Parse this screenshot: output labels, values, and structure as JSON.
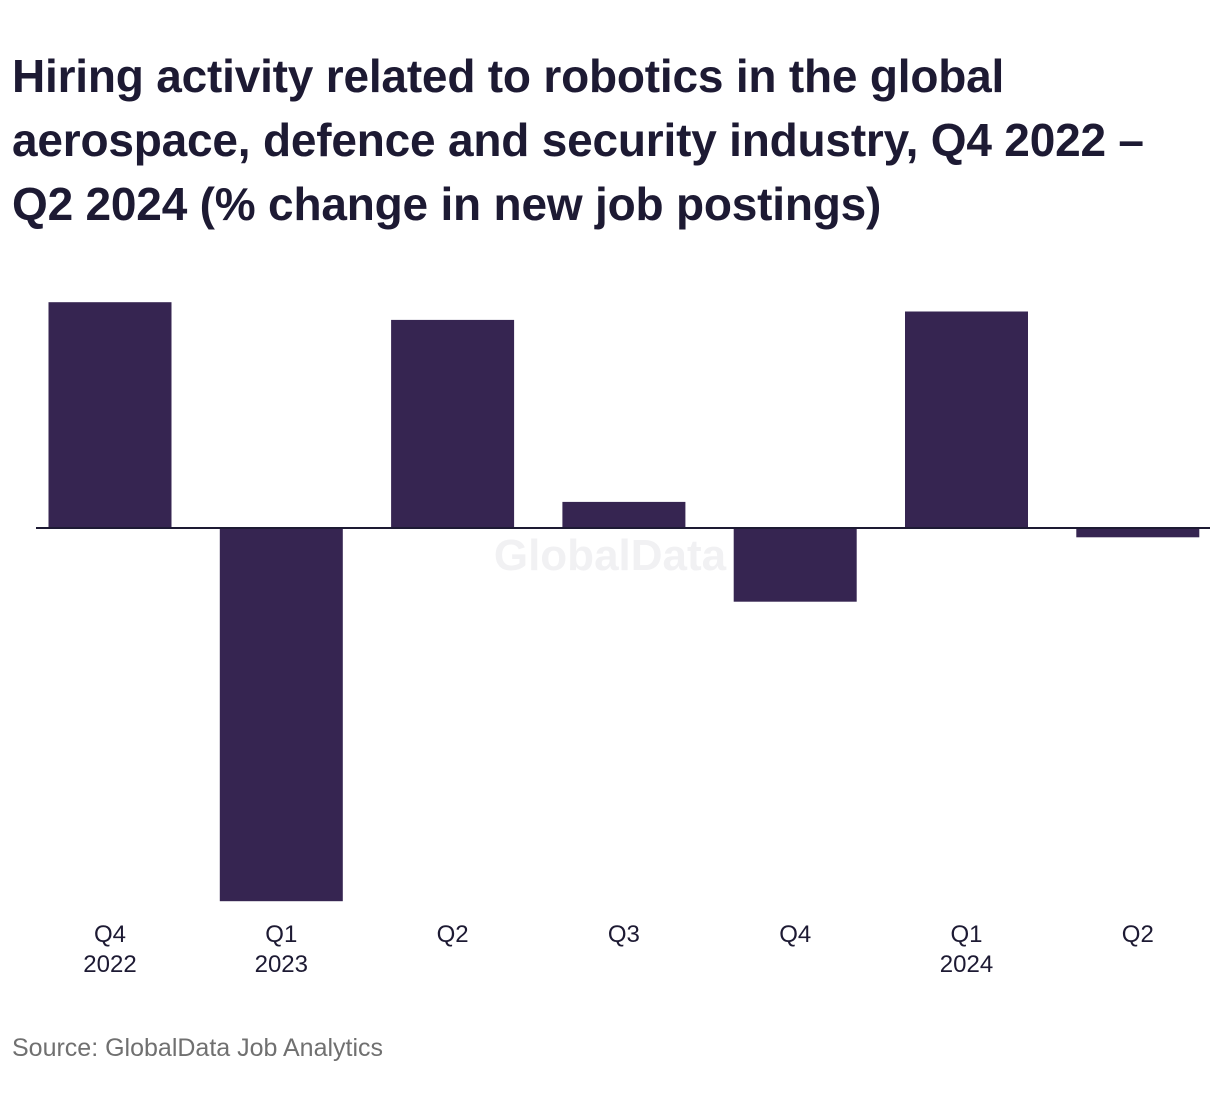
{
  "chart_data": {
    "type": "bar",
    "title": "Hiring activity related to robotics in the global aerospace, defence and security industry, Q4 2022 – Q2 2024 (% change in new job postings)",
    "categories": [
      "Q4 2022",
      "Q1 2023",
      "Q2 2023",
      "Q3 2023",
      "Q4 2023",
      "Q1 2024",
      "Q2 2024"
    ],
    "tick_labels": [
      [
        "Q4",
        "2022"
      ],
      [
        "Q1",
        "2023"
      ],
      [
        "Q2",
        ""
      ],
      [
        "Q3",
        ""
      ],
      [
        "Q4",
        ""
      ],
      [
        "Q1",
        "2024"
      ],
      [
        "Q2",
        ""
      ]
    ],
    "values": [
      24.2,
      -40.0,
      22.3,
      2.8,
      -7.9,
      23.2,
      -1.0
    ],
    "ylim": [
      -40,
      25
    ],
    "xlabel": "",
    "ylabel": "",
    "grid": false,
    "bar_color": "#362551",
    "axis_color": "#1d1a33"
  },
  "watermark": "GlobalData",
  "source": "Source: GlobalData Job Analytics"
}
